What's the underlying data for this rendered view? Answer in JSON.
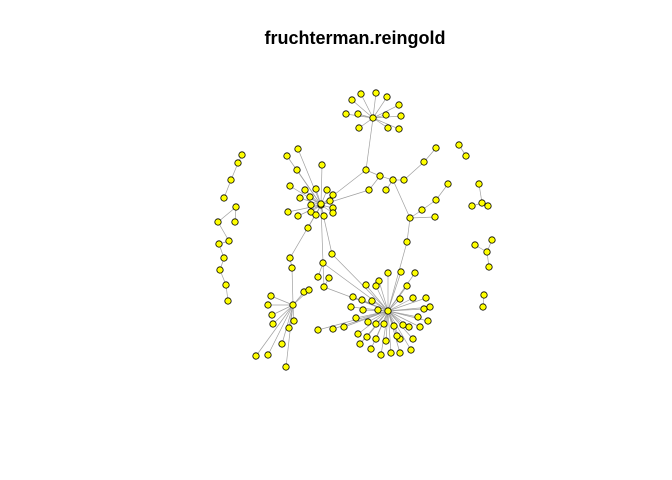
{
  "title": "fruchterman.reingold",
  "node_color": "#ffff00",
  "edge_color": "#a0a0a0",
  "node_count": 162,
  "layout": "fruchterman.reingold"
}
